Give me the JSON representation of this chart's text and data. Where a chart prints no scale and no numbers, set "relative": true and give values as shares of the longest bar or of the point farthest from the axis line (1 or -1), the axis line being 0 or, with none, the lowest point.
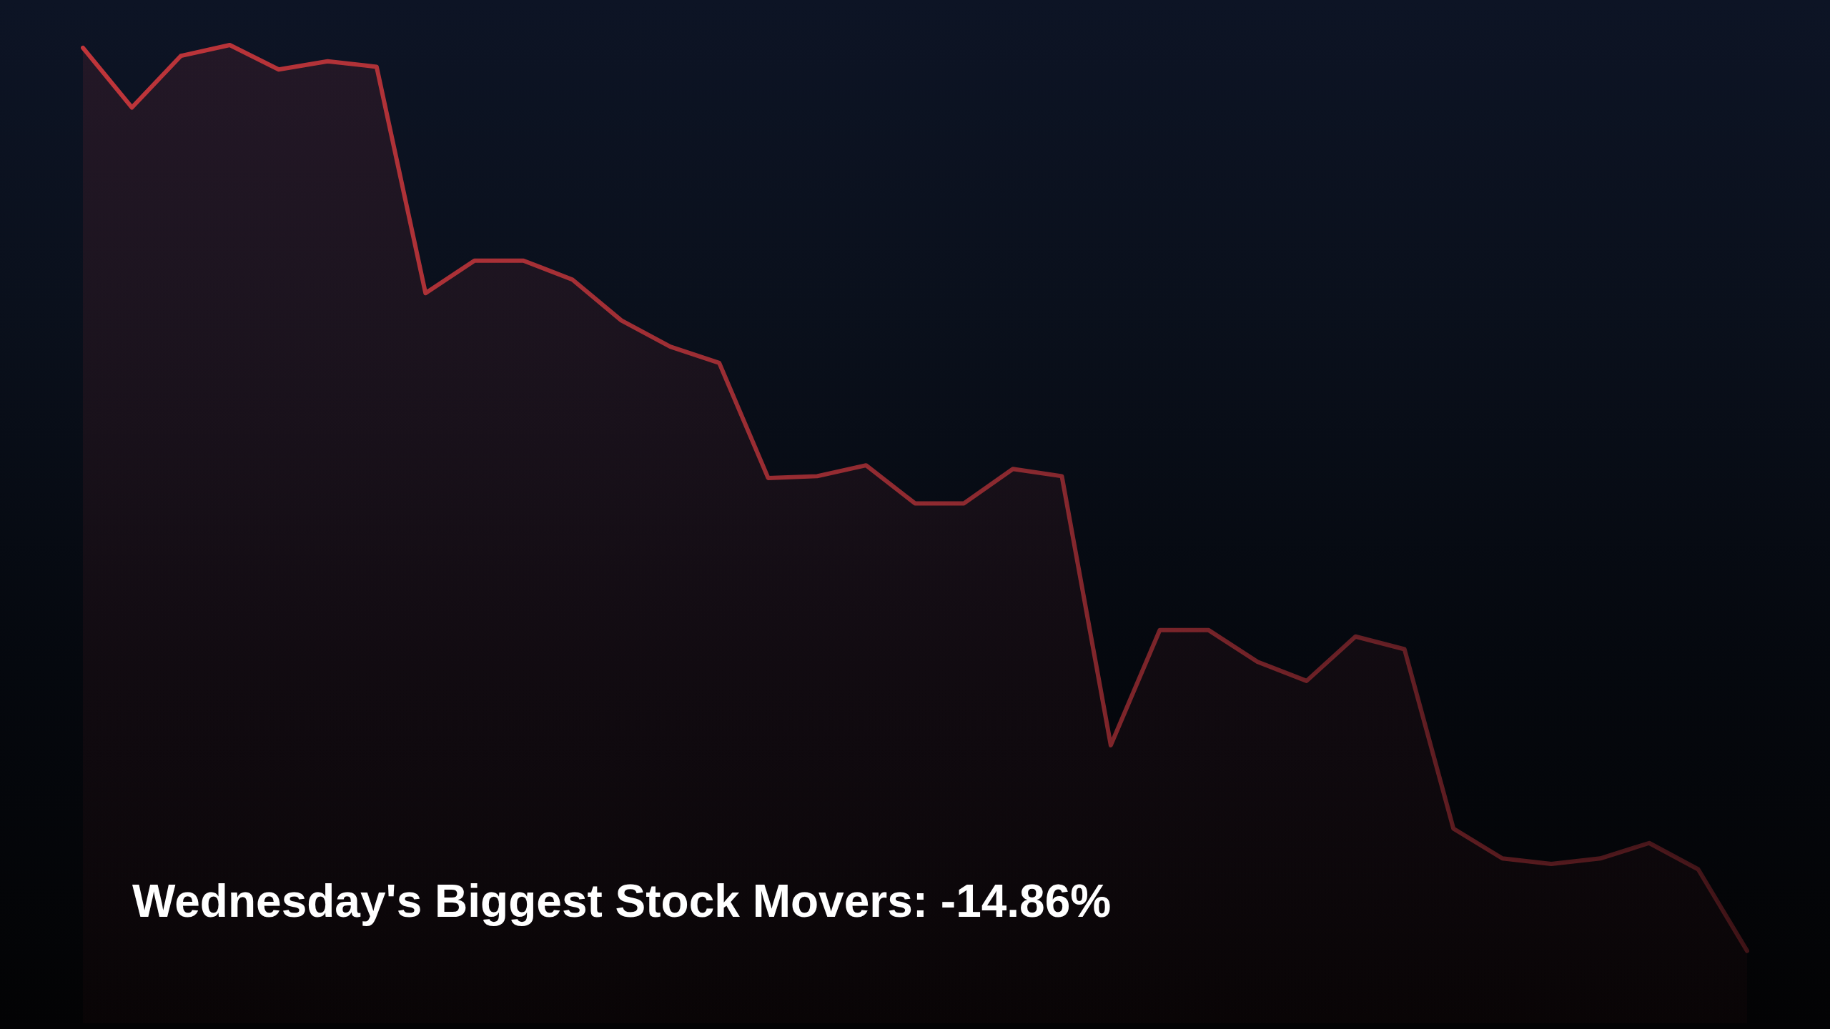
{
  "chart_data": {
    "type": "area",
    "title": "Wednesday's Biggest Stock Movers: -14.86%",
    "categories": [
      null,
      null,
      null,
      null,
      null,
      null,
      null,
      null,
      null,
      null,
      null,
      null,
      null,
      null,
      null,
      null,
      null,
      null,
      null,
      null,
      null,
      null,
      null,
      null,
      null,
      null,
      null,
      null,
      null,
      null,
      null,
      null,
      null,
      null,
      null
    ],
    "values": [
      0.997,
      0.931,
      0.988,
      1,
      0.973,
      0.982,
      0.976,
      0.726,
      0.762,
      0.762,
      0.741,
      0.696,
      0.667,
      0.649,
      0.522,
      0.524,
      0.536,
      0.494,
      0.494,
      0.532,
      0.524,
      0.227,
      0.354,
      0.354,
      0.319,
      0.298,
      0.347,
      0.333,
      0.135,
      0.102,
      0.096,
      0.102,
      0.119,
      0.09,
      0
    ],
    "color": "#c0353a",
    "relative": true
  }
}
